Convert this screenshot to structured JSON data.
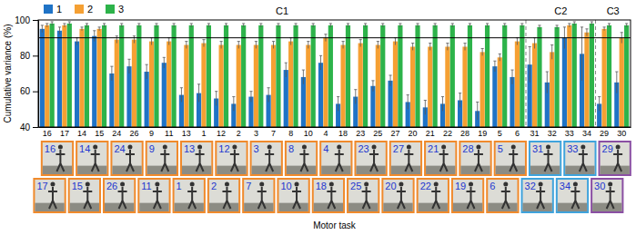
{
  "chart_data": {
    "type": "bar",
    "y_label": "Cumulative variance (%)",
    "x_label": "Motor task",
    "categories": [
      "16",
      "17",
      "14",
      "15",
      "24",
      "26",
      "9",
      "11",
      "13",
      "1",
      "12",
      "2",
      "3",
      "7",
      "8",
      "10",
      "4",
      "18",
      "23",
      "25",
      "27",
      "20",
      "21",
      "22",
      "28",
      "19",
      "5",
      "6",
      "31",
      "32",
      "33",
      "34",
      "29",
      "30"
    ],
    "series": [
      {
        "name": "1",
        "color": "#1f73c6",
        "values": [
          95,
          94,
          88,
          91,
          70,
          74,
          71,
          76,
          58,
          59,
          56,
          53,
          57,
          58,
          72,
          68,
          76,
          53,
          57,
          63,
          66,
          54,
          51,
          53,
          55,
          49,
          74,
          68,
          75,
          65,
          90,
          81,
          53,
          65
        ],
        "errors": [
          2,
          2,
          2,
          3,
          4,
          4,
          4,
          3,
          4,
          5,
          4,
          4,
          3,
          4,
          4,
          4,
          4,
          4,
          4,
          3,
          3,
          4,
          4,
          4,
          4,
          5,
          3,
          4,
          10,
          6,
          6,
          15,
          4,
          6
        ]
      },
      {
        "name": "2",
        "color": "#f5a033",
        "values": [
          97,
          97,
          95,
          95,
          89,
          89,
          88,
          88,
          86,
          87,
          86,
          86,
          86,
          86,
          88,
          86,
          90,
          86,
          87,
          86,
          88,
          85,
          85,
          85,
          85,
          82,
          79,
          88,
          87,
          82,
          97,
          93,
          95,
          90
        ],
        "errors": [
          1,
          1,
          1,
          1,
          2,
          2,
          2,
          2,
          2,
          2,
          2,
          2,
          2,
          2,
          2,
          2,
          2,
          2,
          2,
          2,
          2,
          2,
          2,
          2,
          2,
          2,
          2,
          2,
          3,
          4,
          1,
          2,
          1,
          3
        ]
      },
      {
        "name": "3",
        "color": "#2db34a",
        "values": [
          98,
          98,
          97,
          97,
          97,
          97,
          97,
          97,
          97,
          97,
          97,
          97,
          97,
          97,
          97,
          97,
          97,
          97,
          97,
          97,
          97,
          97,
          97,
          97,
          97,
          97,
          97,
          97,
          96,
          96,
          98,
          98,
          97,
          97
        ],
        "errors": [
          1,
          1,
          1,
          1,
          1,
          1,
          1,
          1,
          1,
          1,
          1,
          1,
          1,
          1,
          1,
          1,
          1,
          1,
          1,
          1,
          1,
          1,
          1,
          1,
          1,
          1,
          1,
          1,
          1,
          1,
          1,
          1,
          1,
          1
        ]
      }
    ],
    "ylim": [
      40,
      100
    ],
    "yticks": [
      40,
      60,
      80,
      100
    ],
    "hline": 90,
    "groups": [
      {
        "name": "C1",
        "size": 28,
        "color": "#f08a2c"
      },
      {
        "name": "C2",
        "size": 4,
        "color": "#3fa3dc"
      },
      {
        "name": "C3",
        "size": 2,
        "color": "#8a4fa3"
      }
    ],
    "legend": "top-left",
    "grid": false
  }
}
